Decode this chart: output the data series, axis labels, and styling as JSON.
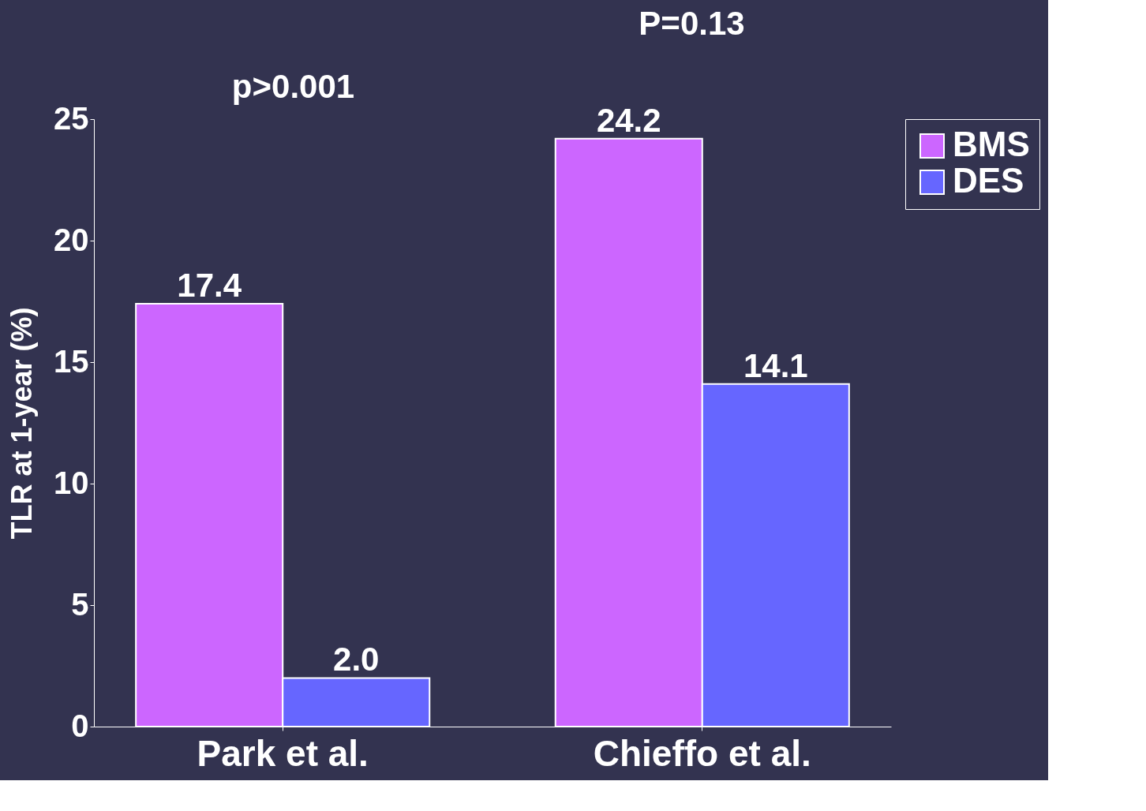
{
  "chart_data": {
    "type": "bar",
    "ylabel": "TLR at 1-year (%)",
    "categories": [
      "Park et al.",
      "Chieffo et al."
    ],
    "series": [
      {
        "name": "BMS",
        "color": "#cc66ff",
        "values": [
          17.4,
          24.2
        ],
        "value_labels": [
          "17.4",
          "24.2"
        ]
      },
      {
        "name": "DES",
        "color": "#6666ff",
        "values": [
          2.0,
          14.1
        ],
        "value_labels": [
          "2.0",
          "14.1"
        ]
      }
    ],
    "ylim": [
      0,
      25
    ],
    "yticks": [
      0,
      5,
      10,
      15,
      20,
      25
    ],
    "grid": false,
    "legend": "right",
    "annotations": [
      "p>0.001",
      "P=0.13"
    ]
  }
}
